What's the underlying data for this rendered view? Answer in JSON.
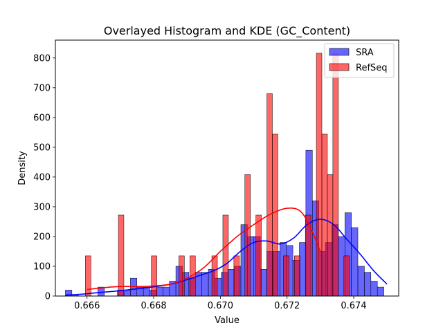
{
  "chart_data": {
    "type": "histogram",
    "title": "Overlayed Histogram and KDE (GC_Content)",
    "xlabel": "Value",
    "ylabel": "Density",
    "xlim": [
      0.66505,
      0.67535
    ],
    "ylim": [
      0,
      860
    ],
    "xticks": [
      0.666,
      0.668,
      0.67,
      0.672,
      0.674
    ],
    "xtick_labels": [
      "0.666",
      "0.668",
      "0.670",
      "0.672",
      "0.674"
    ],
    "yticks": [
      0,
      100,
      200,
      300,
      400,
      500,
      600,
      700,
      800
    ],
    "ytick_labels": [
      "0",
      "100",
      "200",
      "300",
      "400",
      "500",
      "600",
      "700",
      "800"
    ],
    "grid": false,
    "legend_position": "top-right",
    "series": [
      {
        "name": "SRA",
        "color": "#0000ff",
        "bin_start": 0.66535,
        "bin_width": 0.000195,
        "values": [
          20,
          5,
          0,
          0,
          0,
          30,
          0,
          0,
          20,
          20,
          60,
          30,
          30,
          20,
          30,
          30,
          50,
          100,
          80,
          60,
          80,
          80,
          90,
          60,
          80,
          90,
          100,
          240,
          200,
          200,
          90,
          150,
          150,
          180,
          170,
          120,
          180,
          490,
          320,
          150,
          180,
          240,
          200,
          280,
          230,
          100,
          80,
          50,
          30
        ],
        "kde": [
          [
            0.66535,
            3
          ],
          [
            0.6658,
            6
          ],
          [
            0.6662,
            10
          ],
          [
            0.6666,
            14
          ],
          [
            0.667,
            18
          ],
          [
            0.6674,
            23
          ],
          [
            0.6678,
            28
          ],
          [
            0.6682,
            34
          ],
          [
            0.6686,
            42
          ],
          [
            0.669,
            55
          ],
          [
            0.6694,
            70
          ],
          [
            0.6698,
            85
          ],
          [
            0.6702,
            110
          ],
          [
            0.6706,
            150
          ],
          [
            0.671,
            180
          ],
          [
            0.6714,
            185
          ],
          [
            0.6718,
            175
          ],
          [
            0.6722,
            195
          ],
          [
            0.6726,
            240
          ],
          [
            0.673,
            258
          ],
          [
            0.6734,
            240
          ],
          [
            0.6738,
            190
          ],
          [
            0.6742,
            140
          ],
          [
            0.6746,
            85
          ],
          [
            0.675,
            40
          ]
        ]
      },
      {
        "name": "RefSeq",
        "color": "#ff0000",
        "bin_start": 0.66595,
        "bin_width": 0.000165,
        "values": [
          135,
          0,
          0,
          0,
          0,
          0,
          272,
          0,
          0,
          0,
          0,
          0,
          135,
          0,
          0,
          0,
          0,
          135,
          0,
          135,
          0,
          0,
          0,
          135,
          0,
          272,
          0,
          135,
          0,
          408,
          0,
          272,
          0,
          680,
          544,
          0,
          135,
          0,
          135,
          0,
          272,
          0,
          816,
          544,
          408,
          816,
          0,
          135,
          0
        ],
        "kde": [
          [
            0.666,
            22
          ],
          [
            0.6665,
            28
          ],
          [
            0.667,
            32
          ],
          [
            0.6675,
            32
          ],
          [
            0.668,
            34
          ],
          [
            0.6685,
            40
          ],
          [
            0.669,
            60
          ],
          [
            0.6695,
            95
          ],
          [
            0.67,
            150
          ],
          [
            0.6705,
            200
          ],
          [
            0.671,
            240
          ],
          [
            0.6715,
            275
          ],
          [
            0.672,
            295
          ],
          [
            0.6724,
            285
          ],
          [
            0.6727,
            230
          ],
          [
            0.673,
            150
          ]
        ]
      }
    ]
  }
}
